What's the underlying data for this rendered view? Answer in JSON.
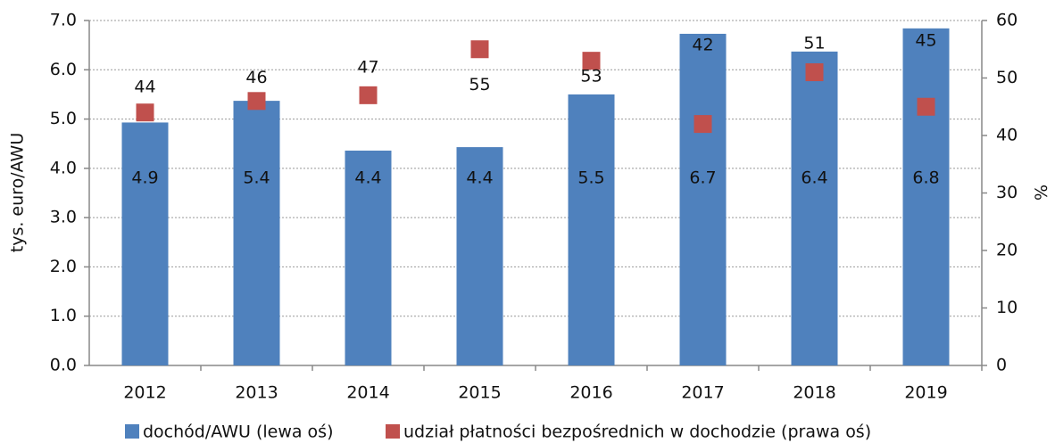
{
  "chart_data": {
    "type": "bar",
    "categories": [
      "2012",
      "2013",
      "2014",
      "2015",
      "2016",
      "2017",
      "2018",
      "2019"
    ],
    "ylabel": "tys. euro/AWU",
    "y2label": "%",
    "ylim": [
      0,
      7
    ],
    "yticks": [
      {
        "value": 0,
        "label": "0.0"
      },
      {
        "value": 1,
        "label": "1.0"
      },
      {
        "value": 2,
        "label": "2.0"
      },
      {
        "value": 3,
        "label": "3.0"
      },
      {
        "value": 4,
        "label": "4.0"
      },
      {
        "value": 5,
        "label": "5.0"
      },
      {
        "value": 6,
        "label": "6.0"
      },
      {
        "value": 7,
        "label": "7.0"
      }
    ],
    "y2lim": [
      0,
      60
    ],
    "y2ticks": [
      0,
      10,
      20,
      30,
      40,
      50,
      60
    ],
    "grid": true,
    "legend": "bottom",
    "series": [
      {
        "name": "dochód/AWU (lewa oś)",
        "type": "bar",
        "color": "#4f81bd",
        "values": [
          4.93,
          5.37,
          4.36,
          4.43,
          5.5,
          6.73,
          6.37,
          6.84
        ],
        "value_labels": [
          "4.9",
          "5.4",
          "4.4",
          "4.4",
          "5.5",
          "6.7",
          "6.4",
          "6.8"
        ]
      },
      {
        "name": "udział płatności bezpośrednich w dochodzie (prawa oś)",
        "type": "scatter",
        "axis": "y2",
        "color": "#c0504d",
        "values": [
          44,
          46,
          47,
          55,
          53,
          42,
          51,
          45
        ]
      }
    ]
  }
}
